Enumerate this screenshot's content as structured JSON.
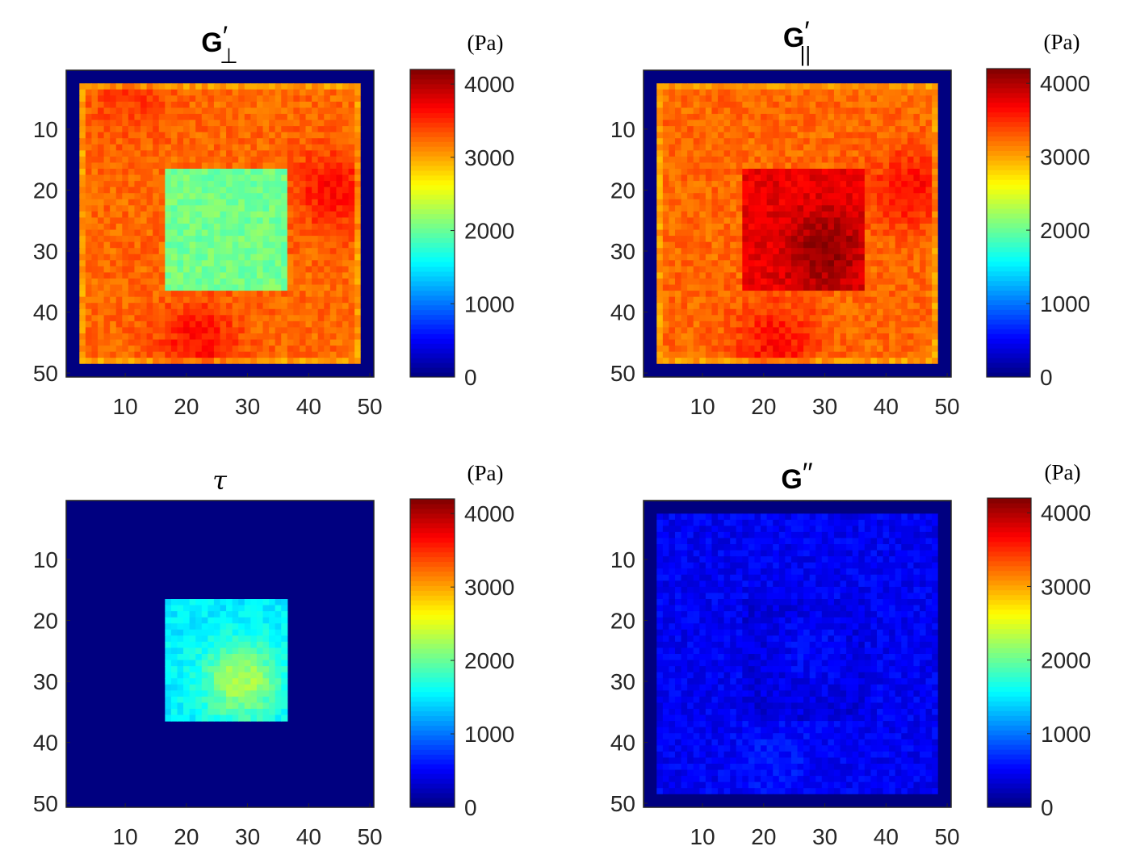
{
  "chart_data": [
    {
      "type": "heatmap",
      "panel": "top-left",
      "title": "G′⊥",
      "title_main": "G",
      "title_prime": "′",
      "title_sub": "⊥",
      "colorbar_label": "(Pa)",
      "xlim": [
        1,
        50
      ],
      "ylim": [
        1,
        50
      ],
      "x_ticks": [
        "10",
        "20",
        "30",
        "40",
        "50"
      ],
      "y_ticks": [
        "10",
        "20",
        "30",
        "40",
        "50"
      ],
      "clim": [
        0,
        4200
      ],
      "colorbar_ticks": [
        "0",
        "1000",
        "2000",
        "3000",
        "4000"
      ],
      "background_value": 3250,
      "border_value": 0,
      "inclusion": {
        "rows": [
          17,
          36
        ],
        "cols": [
          17,
          36
        ],
        "value": 2050
      },
      "hot_spots": [
        {
          "row": 20,
          "col": 44,
          "value": 3650
        },
        {
          "row": 45,
          "col": 22,
          "value": 3650
        },
        {
          "row": 5,
          "col": 11,
          "value": 3450
        }
      ],
      "edge_value": 2700
    },
    {
      "type": "heatmap",
      "panel": "top-right",
      "title": "G′||",
      "title_main": "G",
      "title_prime": "′",
      "title_sub": "||",
      "colorbar_label": "(Pa)",
      "xlim": [
        1,
        50
      ],
      "ylim": [
        1,
        50
      ],
      "x_ticks": [
        "10",
        "20",
        "30",
        "40",
        "50"
      ],
      "y_ticks": [
        "10",
        "20",
        "30",
        "40",
        "50"
      ],
      "clim": [
        0,
        4200
      ],
      "colorbar_ticks": [
        "0",
        "1000",
        "2000",
        "3000",
        "4000"
      ],
      "background_value": 3250,
      "border_value": 0,
      "inclusion": {
        "rows": [
          17,
          36
        ],
        "cols": [
          17,
          36
        ],
        "value": 3750
      },
      "hot_spots": [
        {
          "row": 20,
          "col": 44,
          "value": 3650
        },
        {
          "row": 45,
          "col": 22,
          "value": 3650
        },
        {
          "row": 30,
          "col": 30,
          "value": 4150
        }
      ],
      "edge_value": 2700
    },
    {
      "type": "heatmap",
      "panel": "bottom-left",
      "title": "τ",
      "colorbar_label": "(Pa)",
      "xlim": [
        1,
        50
      ],
      "ylim": [
        1,
        50
      ],
      "x_ticks": [
        "10",
        "20",
        "30",
        "40",
        "50"
      ],
      "y_ticks": [
        "10",
        "20",
        "30",
        "40",
        "50"
      ],
      "clim": [
        0,
        4200
      ],
      "colorbar_ticks": [
        "0",
        "1000",
        "2000",
        "3000",
        "4000"
      ],
      "background_value": 0,
      "inclusion": {
        "rows": [
          17,
          36
        ],
        "cols": [
          17,
          36
        ],
        "value": 1500
      },
      "hot_spots": [
        {
          "row": 30,
          "col": 29,
          "value": 2300
        }
      ]
    },
    {
      "type": "heatmap",
      "panel": "bottom-right",
      "title": "G′′",
      "title_main": "G",
      "title_prime": "′′",
      "colorbar_label": "(Pa)",
      "xlim": [
        1,
        50
      ],
      "ylim": [
        1,
        50
      ],
      "x_ticks": [
        "10",
        "20",
        "30",
        "40",
        "50"
      ],
      "y_ticks": [
        "10",
        "20",
        "30",
        "40",
        "50"
      ],
      "clim": [
        0,
        4200
      ],
      "colorbar_ticks": [
        "0",
        "1000",
        "2000",
        "3000",
        "4000"
      ],
      "background_value": 480,
      "border_value": 0,
      "border_color": "#2b2b2b",
      "inclusion": {
        "rows": [
          17,
          36
        ],
        "cols": [
          17,
          36
        ],
        "value": 380
      },
      "hot_spots": [
        {
          "row": 43,
          "col": 22,
          "value": 620
        },
        {
          "row": 25,
          "col": 28,
          "value": 560
        }
      ]
    }
  ],
  "colormap": "jet",
  "colors": {
    "axis": "#262626",
    "title": "#000000",
    "jet_low": "#00008f",
    "jet_high": "#800000"
  }
}
